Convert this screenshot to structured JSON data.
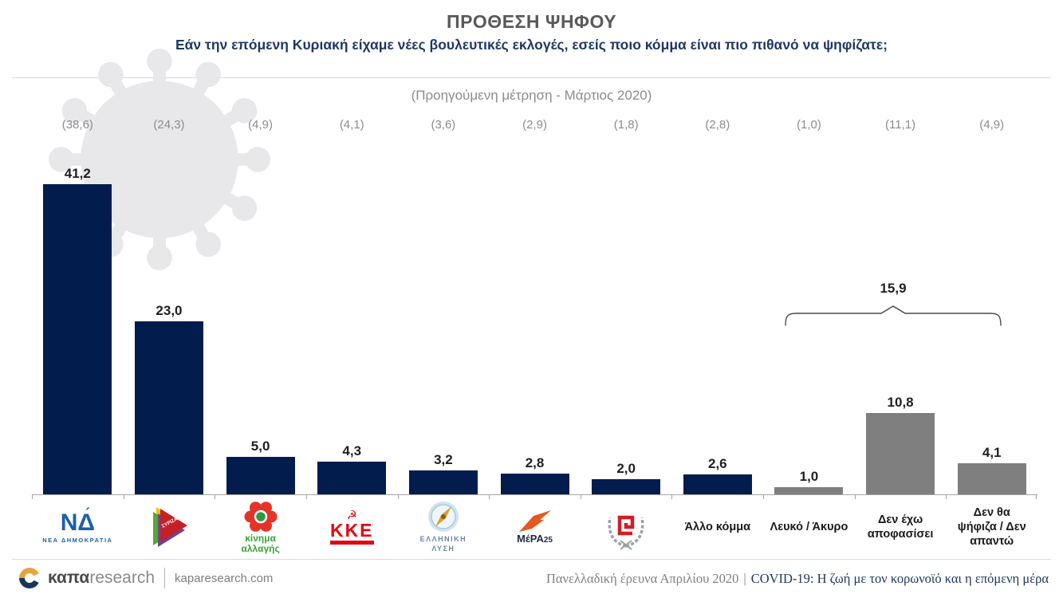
{
  "header": {
    "title": "ΠΡΟΘΕΣΗ ΨΗΦΟΥ",
    "subtitle": "Εάν την επόμενη Κυριακή είχαμε νέες βουλευτικές εκλογές, εσείς ποιο κόμμα είναι πιο πιθανό να ψηφίζατε;"
  },
  "prev_note": "(Προηγούμενη μέτρηση - Μάρτιος 2020)",
  "chart_data": {
    "type": "bar",
    "title": "ΠΡΟΘΕΣΗ ΨΗΦΟΥ",
    "categories": [
      "ΝΕΑ ΔΗΜΟΚΡΑΤΙΑ",
      "ΣΥΡΙΖΑ",
      "Κίνημα Αλλαγής",
      "ΚΚΕ",
      "Ελληνική Λύση",
      "ΜέΡΑ25",
      "Χρυσή Αυγή",
      "Άλλο κόμμα",
      "Λευκό / Άκυρο",
      "Δεν έχω αποφασίσει",
      "Δεν θα ψήφιζα / Δεν απαντώ"
    ],
    "series": [
      {
        "name": "Απρίλιος 2020",
        "values": [
          41.2,
          23.0,
          5.0,
          4.3,
          3.2,
          2.8,
          2.0,
          2.6,
          1.0,
          10.8,
          4.1
        ],
        "display": [
          "41,2",
          "23,0",
          "5,0",
          "4,3",
          "3,2",
          "2,8",
          "2,0",
          "2,6",
          "1,0",
          "10,8",
          "4,1"
        ]
      },
      {
        "name": "Προηγούμενη μέτρηση - Μάρτιος 2020",
        "values": [
          38.6,
          24.3,
          4.9,
          4.1,
          3.6,
          2.9,
          1.8,
          2.8,
          1.0,
          11.1,
          4.9
        ],
        "display": [
          "(38,6)",
          "(24,3)",
          "(4,9)",
          "(4,1)",
          "(3,6)",
          "(2,9)",
          "(1,8)",
          "(2,8)",
          "(1,0)",
          "(11,1)",
          "(4,9)"
        ]
      }
    ],
    "bar_colors": [
      "#031c4e",
      "#031c4e",
      "#031c4e",
      "#031c4e",
      "#031c4e",
      "#031c4e",
      "#031c4e",
      "#031c4e",
      "#7f7f7f",
      "#7f7f7f",
      "#7f7f7f"
    ],
    "ylim": [
      0,
      45
    ],
    "grid": false,
    "legend": "none",
    "annotation": {
      "label": "15,9",
      "covers": [
        "Λευκό / Άκυρο",
        "Δεν έχω αποφασίσει",
        "Δεν θα ψήφιζα / Δεν απαντώ"
      ]
    }
  },
  "logos": {
    "nd_mark": "ΝΔ",
    "nd_caption": "ΝΕΑ ΔΗΜΟΚΡΑΤΙΑ",
    "syriza_text": "ΣΥΡΙΖΑ",
    "kinal_caption_1": "κίνημα",
    "kinal_caption_2": "αλλαγής",
    "kke_symbol": "☭",
    "kke_text": "ΚΚΕ",
    "el_lysi_caption_1": "ΕΛΛΗΝΙΚΗ",
    "el_lysi_caption_2": "ΛΥΣΗ",
    "mera_caption": "ΜέΡΑ",
    "mera_num": "25"
  },
  "colors": {
    "navy": "#031c4e",
    "gray": "#7f7f7f",
    "accent_text": "#1f3864",
    "watermark": "#e8e8eb"
  },
  "footer": {
    "brand_bold": "καπα",
    "brand_light": "research",
    "site": "kaparesearch.com",
    "survey": "Πανελλαδική έρευνα Απριλίου 2020",
    "separator": "|",
    "topic": "COVID-19: Η ζωή με τον κορωνοϊό και η επόμενη μέρα"
  }
}
